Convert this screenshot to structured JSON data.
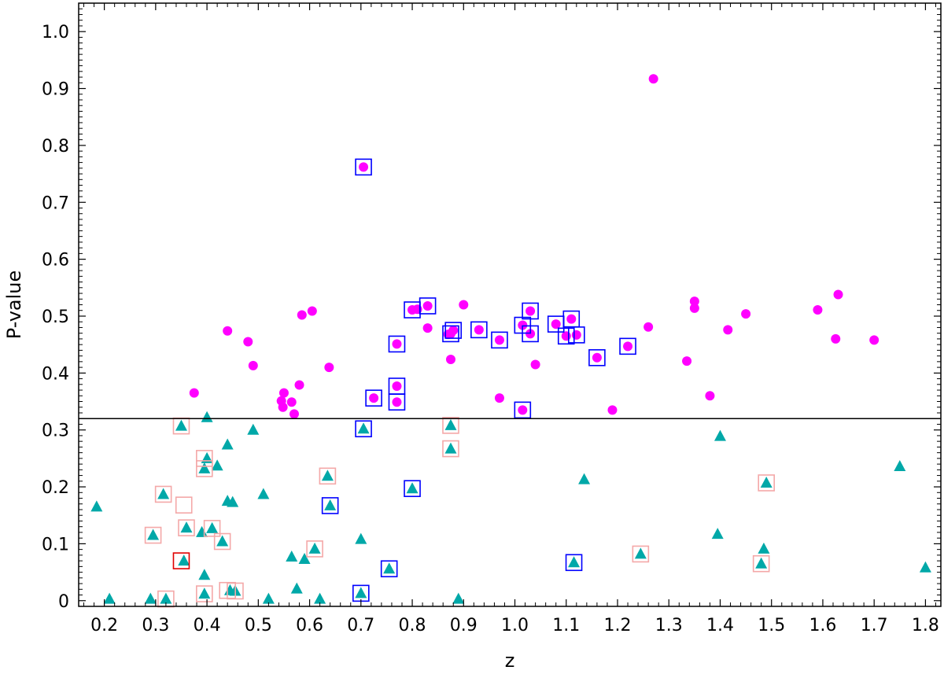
{
  "chart_data": {
    "type": "scatter",
    "title": "",
    "xlabel": "z",
    "ylabel": "P-value",
    "xlim": [
      0.15,
      1.83
    ],
    "ylim": [
      -0.01,
      1.05
    ],
    "xticks": [
      0.2,
      0.3,
      0.4,
      0.5,
      0.6,
      0.7,
      0.8,
      0.9,
      1.0,
      1.1,
      1.2,
      1.3,
      1.4,
      1.5,
      1.6,
      1.7,
      1.8
    ],
    "xtick_labels": [
      "0.2",
      "0.3",
      "0.4",
      "0.5",
      "0.6",
      "0.7",
      "0.8",
      "0.9",
      "1.0",
      "1.1",
      "1.2",
      "1.3",
      "1.4",
      "1.5",
      "1.6",
      "1.7",
      "1.8"
    ],
    "yticks": [
      0.0,
      0.1,
      0.2,
      0.3,
      0.4,
      0.5,
      0.6,
      0.7,
      0.8,
      0.9,
      1.0
    ],
    "ytick_labels": [
      "0",
      "0.1",
      "0.2",
      "0.3",
      "0.4",
      "0.5",
      "0.6",
      "0.7",
      "0.8",
      "0.9",
      "1.0"
    ],
    "grid": false,
    "legend": "none",
    "threshold_line": 0.32,
    "colors": {
      "circles": "#ff00ff",
      "triangles": "#00a8a8",
      "blue_box": "#0000ff",
      "pink_box": "#f4a8a8",
      "red_box": "#e00000",
      "axis": "#000000"
    },
    "series": [
      {
        "marker": "circle",
        "x": [
          1.27,
          0.705,
          0.44,
          0.48,
          0.49,
          0.375,
          0.585,
          0.605,
          0.638,
          0.58,
          0.55,
          0.548,
          0.545,
          0.565,
          0.57,
          0.77,
          0.77,
          0.77,
          0.725,
          0.8,
          0.81,
          0.83,
          0.83,
          0.875,
          0.875,
          0.88,
          0.87,
          0.9,
          0.93,
          0.97,
          0.97,
          1.015,
          1.015,
          1.03,
          1.03,
          1.04,
          1.08,
          1.1,
          1.11,
          1.12,
          1.16,
          1.19,
          1.22,
          1.26,
          1.335,
          1.35,
          1.35,
          1.38,
          1.415,
          1.45,
          1.59,
          1.625,
          1.63,
          1.7
        ],
        "y": [
          0.917,
          0.762,
          0.474,
          0.455,
          0.413,
          0.365,
          0.502,
          0.509,
          0.41,
          0.379,
          0.365,
          0.34,
          0.351,
          0.349,
          0.328,
          0.451,
          0.377,
          0.349,
          0.356,
          0.511,
          0.512,
          0.518,
          0.479,
          0.469,
          0.424,
          0.475,
          0.468,
          0.52,
          0.476,
          0.458,
          0.356,
          0.484,
          0.335,
          0.509,
          0.469,
          0.415,
          0.486,
          0.465,
          0.495,
          0.467,
          0.427,
          0.335,
          0.447,
          0.481,
          0.421,
          0.526,
          0.514,
          0.36,
          0.476,
          0.504,
          0.511,
          0.46,
          0.538,
          0.458
        ]
      },
      {
        "marker": "triangle",
        "x": [
          0.185,
          0.21,
          0.29,
          0.295,
          0.315,
          0.32,
          0.35,
          0.355,
          0.36,
          0.39,
          0.395,
          0.395,
          0.4,
          0.395,
          0.41,
          0.42,
          0.43,
          0.44,
          0.44,
          0.45,
          0.455,
          0.445,
          0.49,
          0.51,
          0.52,
          0.565,
          0.575,
          0.59,
          0.61,
          0.62,
          0.635,
          0.64,
          0.7,
          0.705,
          0.7,
          0.755,
          0.8,
          0.875,
          0.875,
          0.89,
          1.115,
          1.135,
          1.245,
          1.395,
          1.4,
          1.48,
          1.485,
          1.49,
          1.75,
          1.8,
          0.4
        ],
        "y": [
          0.165,
          0.003,
          0.003,
          0.115,
          0.187,
          0.003,
          0.307,
          0.07,
          0.128,
          0.12,
          0.045,
          0.012,
          0.25,
          0.232,
          0.127,
          0.237,
          0.104,
          0.175,
          0.274,
          0.173,
          0.017,
          0.018,
          0.3,
          0.187,
          0.003,
          0.077,
          0.021,
          0.073,
          0.091,
          0.003,
          0.219,
          0.167,
          0.108,
          0.302,
          0.013,
          0.056,
          0.197,
          0.308,
          0.267,
          0.003,
          0.067,
          0.213,
          0.082,
          0.117,
          0.289,
          0.065,
          0.091,
          0.207,
          0.236,
          0.058,
          0.322
        ]
      }
    ],
    "blue_boxes": [
      [
        0.705,
        0.762
      ],
      [
        0.77,
        0.451
      ],
      [
        0.77,
        0.377
      ],
      [
        0.77,
        0.349
      ],
      [
        0.725,
        0.356
      ],
      [
        0.8,
        0.511
      ],
      [
        0.83,
        0.518
      ],
      [
        0.875,
        0.469
      ],
      [
        0.88,
        0.475
      ],
      [
        0.93,
        0.476
      ],
      [
        0.97,
        0.458
      ],
      [
        1.015,
        0.484
      ],
      [
        1.015,
        0.335
      ],
      [
        1.03,
        0.509
      ],
      [
        1.03,
        0.469
      ],
      [
        1.08,
        0.486
      ],
      [
        1.1,
        0.465
      ],
      [
        1.11,
        0.495
      ],
      [
        1.12,
        0.467
      ],
      [
        1.16,
        0.427
      ],
      [
        1.22,
        0.447
      ],
      [
        0.705,
        0.302
      ],
      [
        0.8,
        0.197
      ],
      [
        0.64,
        0.167
      ],
      [
        0.755,
        0.056
      ],
      [
        0.7,
        0.013
      ],
      [
        1.115,
        0.067
      ]
    ],
    "pink_boxes": [
      [
        0.35,
        0.307
      ],
      [
        0.395,
        0.25
      ],
      [
        0.395,
        0.232
      ],
      [
        0.315,
        0.187
      ],
      [
        0.355,
        0.168
      ],
      [
        0.36,
        0.128
      ],
      [
        0.295,
        0.115
      ],
      [
        0.41,
        0.127
      ],
      [
        0.43,
        0.104
      ],
      [
        0.395,
        0.012
      ],
      [
        0.44,
        0.018
      ],
      [
        0.455,
        0.017
      ],
      [
        0.32,
        0.003
      ],
      [
        0.635,
        0.219
      ],
      [
        0.61,
        0.091
      ],
      [
        0.875,
        0.308
      ],
      [
        0.875,
        0.267
      ],
      [
        1.245,
        0.082
      ],
      [
        1.48,
        0.065
      ],
      [
        1.49,
        0.207
      ]
    ],
    "red_boxes": [
      [
        0.35,
        0.07
      ]
    ]
  }
}
